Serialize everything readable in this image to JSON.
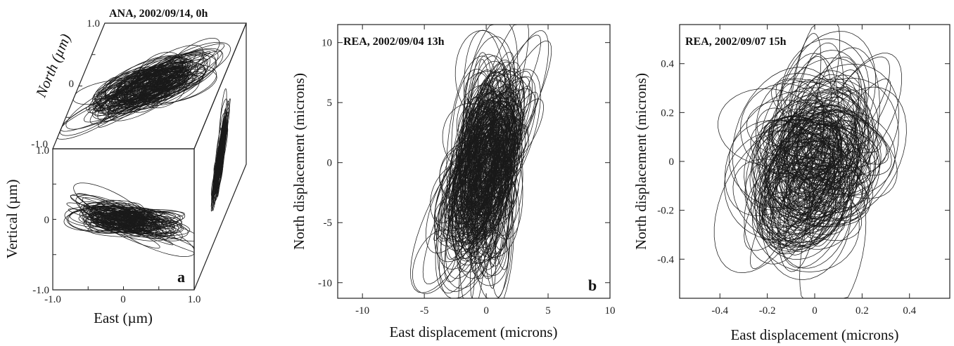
{
  "chart_data": [
    {
      "id": "a",
      "type": "scatter",
      "panel_label": "a",
      "title": "ANA, 2002/09/14, 0h",
      "xlabel": "East (µm)",
      "ylabel_vertical": "Vertical  (µm)",
      "ylabel_north": "North (µm)",
      "east_ticks": [
        "-1.0",
        "0",
        "1.0"
      ],
      "vertical_ticks": [
        "1.0",
        "0",
        "-1.0"
      ],
      "north_ticks": [
        "1.0",
        "0",
        "-1.0"
      ],
      "ranges": {
        "east": [
          -1,
          1
        ],
        "north": [
          -1,
          1
        ],
        "vertical": [
          -1,
          1
        ]
      },
      "orbit_faces": {
        "east_north": {
          "angle_deg": 27,
          "major": 0.95,
          "minor": 0.28
        },
        "east_vertical": {
          "angle_deg": -10,
          "major": 0.9,
          "minor": 0.16
        },
        "north_vertical": {
          "angle_deg": 60,
          "major": 0.55,
          "minor": 0.13
        }
      }
    },
    {
      "id": "b",
      "type": "scatter",
      "panel_label": "b",
      "title": "REA, 2002/09/04 13h",
      "xlabel": "East displacement (microns)",
      "ylabel": "North displacement (microns)",
      "xlim": [
        -12,
        10
      ],
      "ylim": [
        -11.3,
        11.5
      ],
      "xticks": [
        -10,
        -5,
        0,
        5,
        10
      ],
      "yticks": [
        10,
        5,
        0,
        -5,
        -10
      ],
      "orbit": {
        "angle_deg": 79,
        "major": 10.5,
        "minor": 2.1
      }
    },
    {
      "id": "c",
      "type": "scatter",
      "panel_label": "",
      "title": "REA, 2002/09/07 15h",
      "xlabel": "East displacement (microns)",
      "ylabel": "North displacement (microns)",
      "xlim": [
        -0.57,
        0.57
      ],
      "ylim": [
        -0.56,
        0.56
      ],
      "xticks": [
        -0.4,
        -0.2,
        0,
        0.2,
        0.4
      ],
      "yticks": [
        0.4,
        0.2,
        0,
        -0.2,
        -0.4
      ],
      "orbit": {
        "angle_deg": 67,
        "major": 0.45,
        "minor": 0.22
      }
    }
  ]
}
